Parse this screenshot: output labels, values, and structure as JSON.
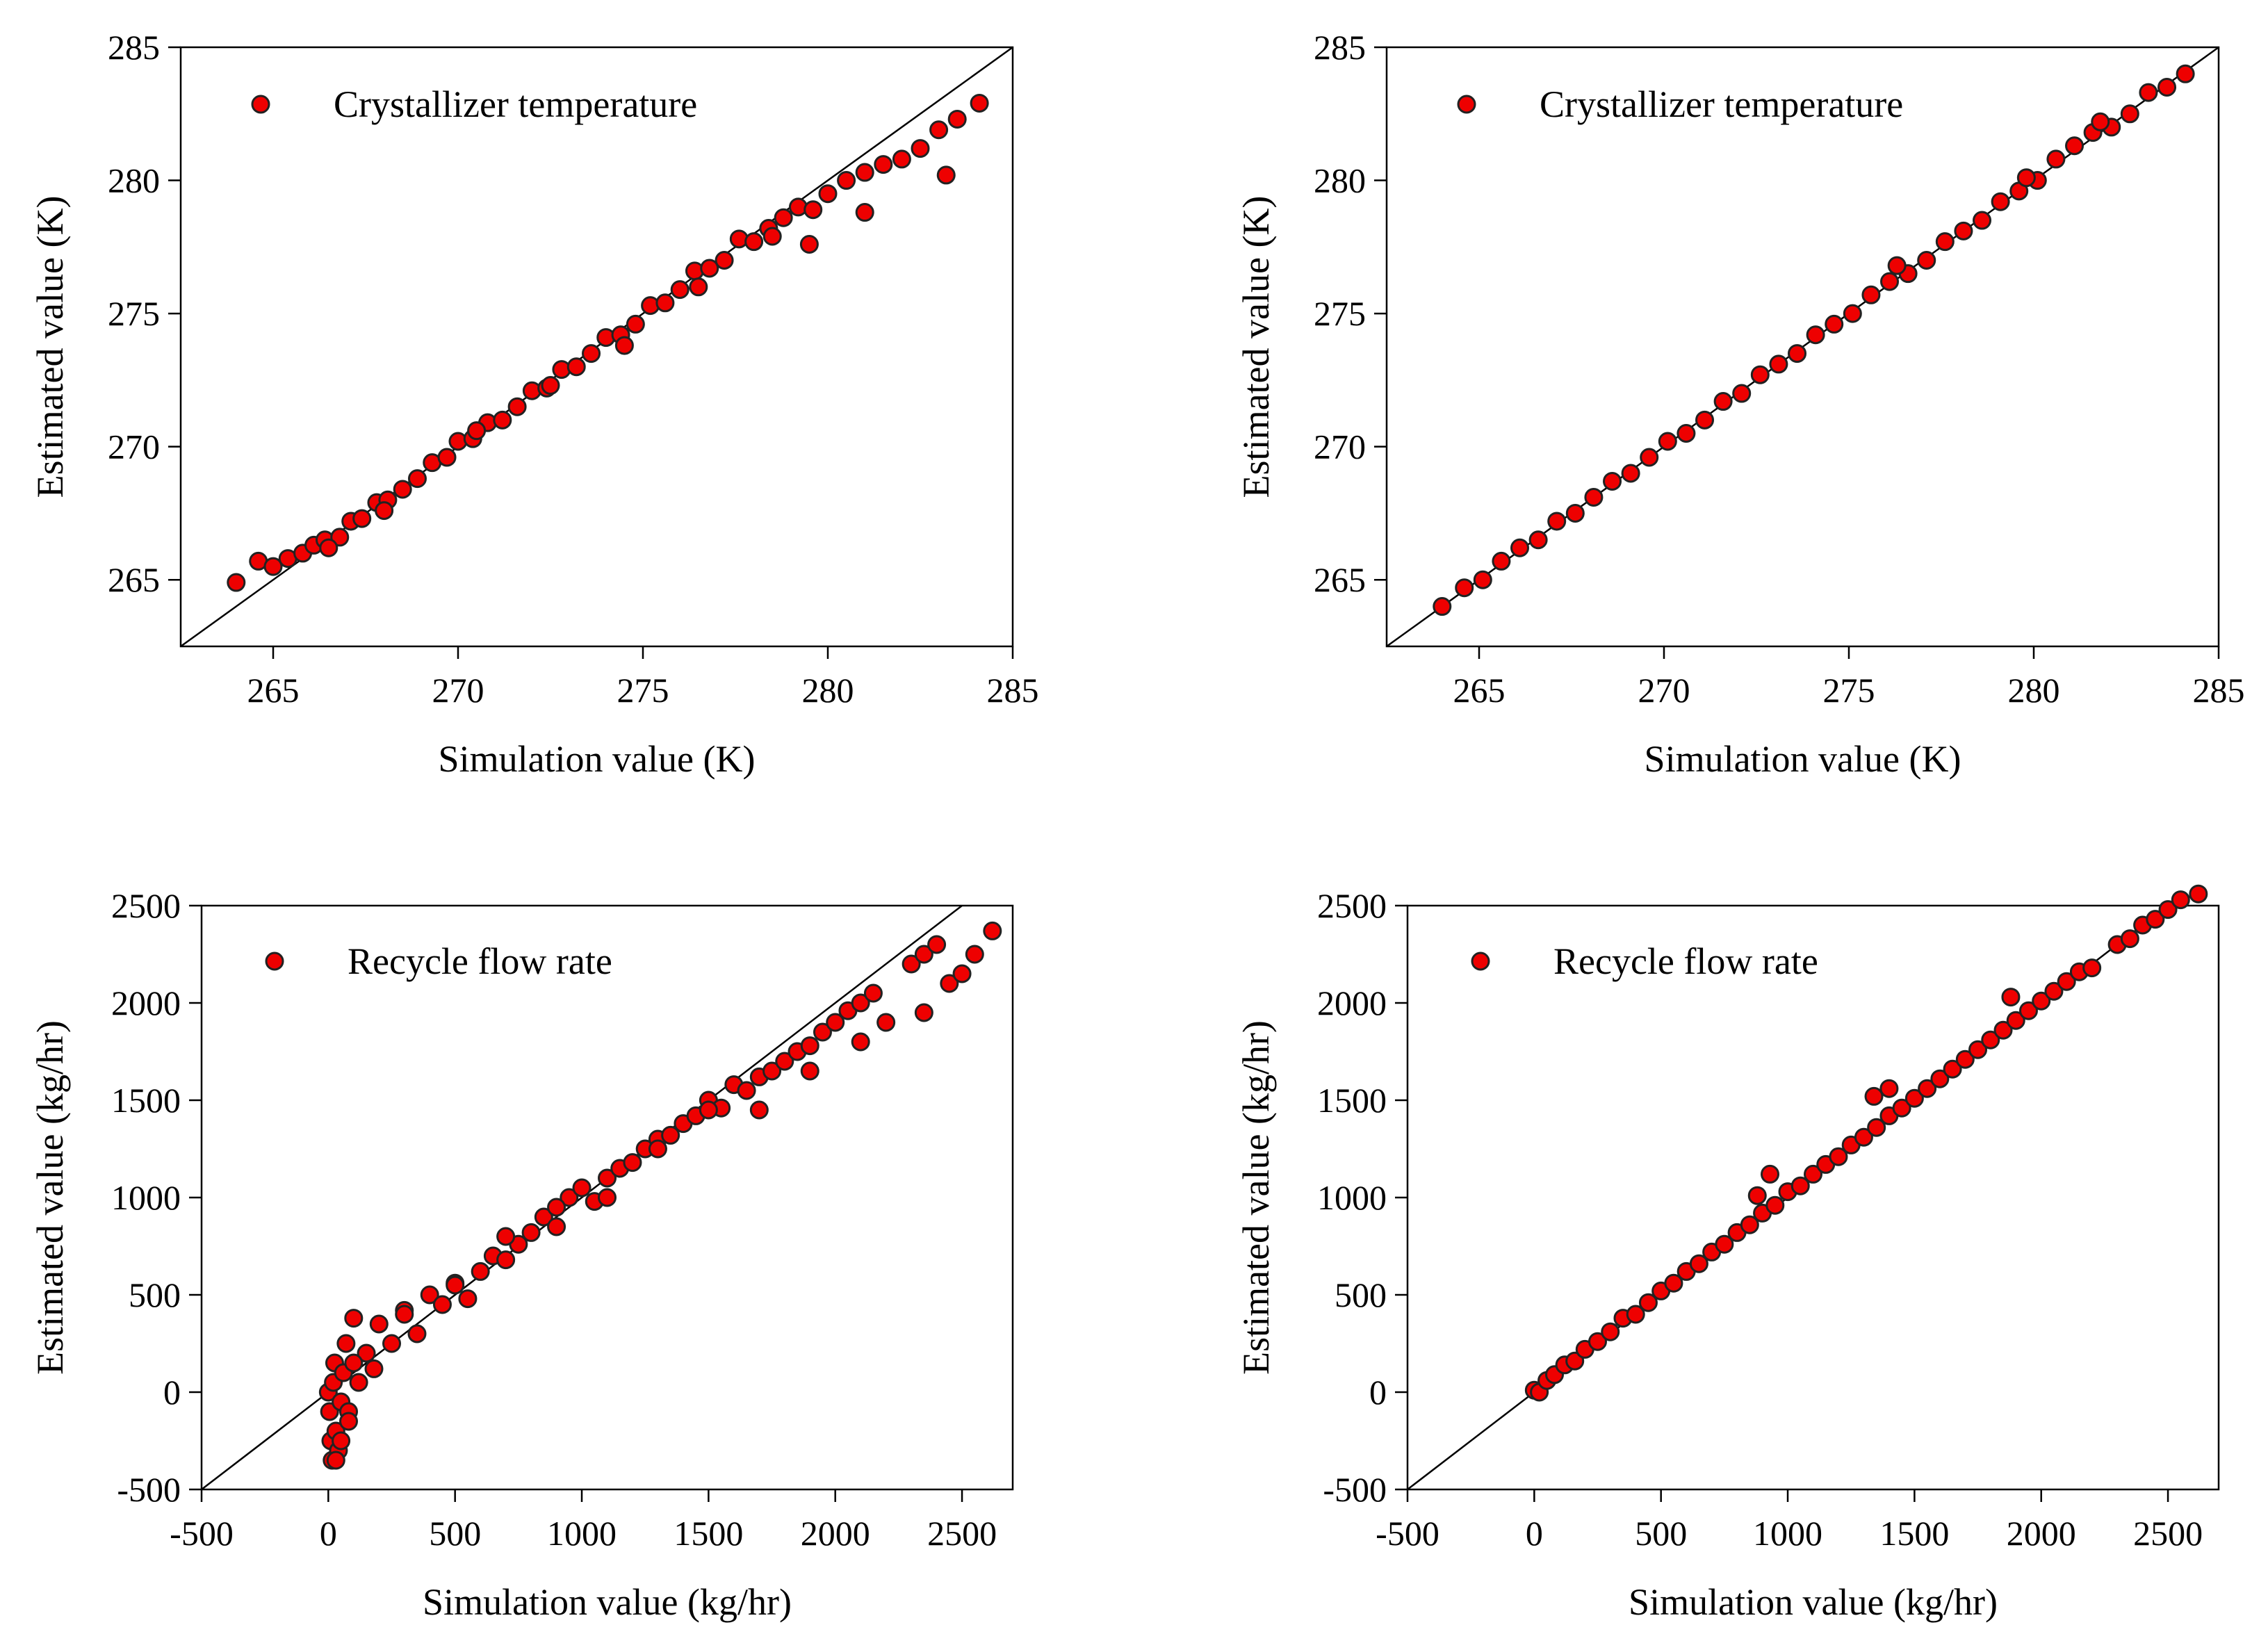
{
  "colors": {
    "marker_fill": "#ee0000",
    "marker_edge": "#222222",
    "line": "#000000"
  },
  "chart_data": [
    {
      "type": "scatter",
      "legend": "Crystallizer temperature",
      "legend_position": "top-left",
      "xlabel": "Simulation value (K)",
      "ylabel": "Estimated value (K)",
      "xlim": [
        262.5,
        285
      ],
      "ylim": [
        262.5,
        285
      ],
      "xticks": [
        "265",
        "270",
        "275",
        "280",
        "285"
      ],
      "yticks": [
        "265",
        "270",
        "275",
        "280",
        "285"
      ],
      "reference_line": "y = x",
      "x": [
        264.0,
        264.6,
        265.0,
        265.4,
        265.8,
        266.1,
        266.4,
        266.8,
        267.1,
        267.4,
        267.8,
        268.1,
        268.5,
        268.9,
        269.3,
        269.7,
        270.0,
        270.4,
        270.8,
        271.2,
        271.6,
        272.0,
        272.4,
        272.8,
        273.2,
        273.6,
        274.0,
        274.4,
        274.8,
        275.2,
        275.6,
        276.0,
        276.4,
        276.8,
        277.2,
        277.6,
        278.0,
        278.4,
        278.8,
        279.2,
        279.6,
        280.0,
        280.5,
        281.0,
        281.5,
        282.0,
        282.5,
        283.0,
        283.5,
        284.1,
        266.5,
        268.0,
        270.5,
        272.5,
        274.5,
        276.5,
        278.5,
        279.5,
        281.0,
        283.2
      ],
      "y": [
        264.9,
        265.7,
        265.5,
        265.8,
        266.0,
        266.3,
        266.5,
        266.6,
        267.2,
        267.3,
        267.9,
        268.0,
        268.4,
        268.8,
        269.4,
        269.6,
        270.2,
        270.3,
        270.9,
        271.0,
        271.5,
        272.1,
        272.2,
        272.9,
        273.0,
        273.5,
        274.1,
        274.2,
        274.6,
        275.3,
        275.4,
        275.9,
        276.6,
        276.7,
        277.0,
        277.8,
        277.7,
        278.2,
        278.6,
        279.0,
        278.9,
        279.5,
        280.0,
        280.3,
        280.6,
        280.8,
        281.2,
        281.9,
        282.3,
        282.9,
        266.2,
        267.6,
        270.6,
        272.3,
        273.8,
        276.0,
        277.9,
        277.6,
        278.8,
        280.2
      ]
    },
    {
      "type": "scatter",
      "legend": "Crystallizer temperature",
      "legend_position": "top-left",
      "xlabel": "Simulation value (K)",
      "ylabel": "Estimated value (K)",
      "xlim": [
        262.5,
        285
      ],
      "ylim": [
        262.5,
        285
      ],
      "xticks": [
        "265",
        "270",
        "275",
        "280",
        "285"
      ],
      "yticks": [
        "265",
        "270",
        "275",
        "280",
        "285"
      ],
      "reference_line": "y = x",
      "x": [
        264.0,
        264.6,
        265.1,
        265.6,
        266.1,
        266.6,
        267.1,
        267.6,
        268.1,
        268.6,
        269.1,
        269.6,
        270.1,
        270.6,
        271.1,
        271.6,
        272.1,
        272.6,
        273.1,
        273.6,
        274.1,
        274.6,
        275.1,
        275.6,
        276.1,
        276.6,
        277.1,
        277.6,
        278.1,
        278.6,
        279.1,
        279.6,
        280.1,
        280.6,
        281.1,
        281.6,
        282.1,
        282.6,
        283.1,
        283.6,
        284.1,
        276.3,
        279.8,
        281.8
      ],
      "y": [
        264.0,
        264.7,
        265.0,
        265.7,
        266.2,
        266.5,
        267.2,
        267.5,
        268.1,
        268.7,
        269.0,
        269.6,
        270.2,
        270.5,
        271.0,
        271.7,
        272.0,
        272.7,
        273.1,
        273.5,
        274.2,
        274.6,
        275.0,
        275.7,
        276.2,
        276.5,
        277.0,
        277.7,
        278.1,
        278.5,
        279.2,
        279.6,
        280.0,
        280.8,
        281.3,
        281.8,
        282.0,
        282.5,
        283.3,
        283.5,
        284.0,
        276.8,
        280.1,
        282.2
      ]
    },
    {
      "type": "scatter",
      "legend": "Recycle flow rate",
      "legend_position": "top-left",
      "xlabel": "Simulation value (kg/hr)",
      "ylabel": "Estimated value (kg/hr)",
      "xlim": [
        -500,
        2700
      ],
      "ylim": [
        -500,
        2500
      ],
      "xticks": [
        "-500",
        "0",
        "500",
        "1000",
        "1500",
        "2000",
        "2500"
      ],
      "yticks": [
        "-500",
        "0",
        "500",
        "1000",
        "1500",
        "2000",
        "2500"
      ],
      "reference_line": "y = x",
      "x": [
        0,
        5,
        10,
        15,
        20,
        25,
        30,
        40,
        50,
        60,
        70,
        80,
        100,
        120,
        150,
        180,
        200,
        250,
        300,
        350,
        400,
        450,
        500,
        550,
        600,
        650,
        700,
        750,
        800,
        850,
        900,
        950,
        1000,
        1050,
        1100,
        1150,
        1200,
        1250,
        1300,
        1350,
        1400,
        1450,
        1500,
        1550,
        1600,
        1650,
        1700,
        1750,
        1800,
        1850,
        1900,
        1950,
        2000,
        2050,
        2100,
        2150,
        2200,
        2300,
        2350,
        2400,
        2450,
        2500,
        2550,
        2620,
        100,
        300,
        500,
        700,
        900,
        1100,
        1300,
        1500,
        1700,
        1900,
        2100,
        2350,
        30,
        50,
        80
      ],
      "y": [
        0,
        -100,
        -250,
        -350,
        50,
        150,
        -200,
        -300,
        -50,
        100,
        250,
        -100,
        380,
        50,
        200,
        120,
        350,
        250,
        420,
        300,
        500,
        450,
        560,
        480,
        620,
        700,
        680,
        760,
        820,
        900,
        850,
        1000,
        1050,
        980,
        1100,
        1150,
        1180,
        1250,
        1300,
        1320,
        1380,
        1420,
        1500,
        1460,
        1580,
        1550,
        1620,
        1650,
        1700,
        1750,
        1780,
        1850,
        1900,
        1960,
        2000,
        2050,
        1900,
        2200,
        2250,
        2300,
        2100,
        2150,
        2250,
        2370,
        150,
        400,
        550,
        800,
        950,
        1000,
        1250,
        1450,
        1450,
        1650,
        1800,
        1950,
        -350,
        -250,
        -150
      ]
    },
    {
      "type": "scatter",
      "legend": "Recycle flow rate",
      "legend_position": "top-left",
      "xlabel": "Simulation value (kg/hr)",
      "ylabel": "Estimated value (kg/hr)",
      "xlim": [
        -500,
        2700
      ],
      "ylim": [
        -500,
        2500
      ],
      "xticks": [
        "-500",
        "0",
        "500",
        "1000",
        "1500",
        "2000",
        "2500"
      ],
      "yticks": [
        "-500",
        "0",
        "500",
        "1000",
        "1500",
        "2000",
        "2500"
      ],
      "reference_line": "y = x",
      "x": [
        0,
        20,
        50,
        80,
        120,
        160,
        200,
        250,
        300,
        350,
        400,
        450,
        500,
        550,
        600,
        650,
        700,
        750,
        800,
        850,
        900,
        950,
        1000,
        1050,
        1100,
        1150,
        1200,
        1250,
        1300,
        1350,
        1400,
        1450,
        1500,
        1550,
        1600,
        1650,
        1700,
        1750,
        1800,
        1850,
        1900,
        1950,
        2000,
        2050,
        2100,
        2150,
        2200,
        2300,
        2350,
        2400,
        2450,
        2500,
        2550,
        2620,
        880,
        1340,
        1400,
        1880,
        930
      ],
      "y": [
        10,
        0,
        60,
        90,
        140,
        160,
        220,
        260,
        310,
        380,
        400,
        460,
        520,
        560,
        620,
        660,
        720,
        760,
        820,
        860,
        920,
        960,
        1030,
        1060,
        1120,
        1170,
        1210,
        1270,
        1310,
        1360,
        1420,
        1460,
        1510,
        1560,
        1610,
        1660,
        1710,
        1760,
        1810,
        1860,
        1910,
        1960,
        2010,
        2060,
        2110,
        2160,
        2180,
        2300,
        2330,
        2400,
        2430,
        2480,
        2530,
        2560,
        1010,
        1520,
        1560,
        2030,
        1120
      ]
    }
  ]
}
